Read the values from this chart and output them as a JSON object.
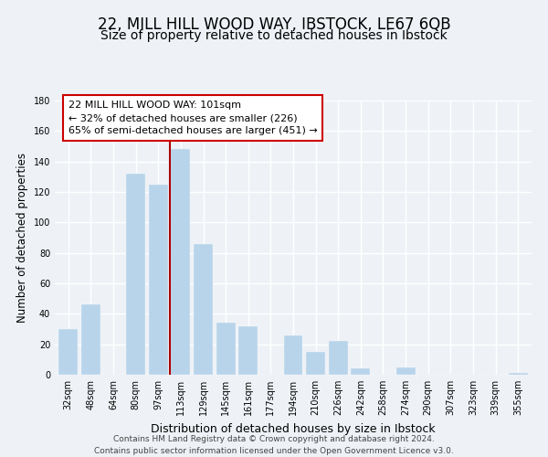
{
  "title": "22, MILL HILL WOOD WAY, IBSTOCK, LE67 6QB",
  "subtitle": "Size of property relative to detached houses in Ibstock",
  "xlabel": "Distribution of detached houses by size in Ibstock",
  "ylabel": "Number of detached properties",
  "categories": [
    "32sqm",
    "48sqm",
    "64sqm",
    "80sqm",
    "97sqm",
    "113sqm",
    "129sqm",
    "145sqm",
    "161sqm",
    "177sqm",
    "194sqm",
    "210sqm",
    "226sqm",
    "242sqm",
    "258sqm",
    "274sqm",
    "290sqm",
    "307sqm",
    "323sqm",
    "339sqm",
    "355sqm"
  ],
  "values": [
    30,
    46,
    0,
    132,
    125,
    148,
    86,
    34,
    32,
    0,
    26,
    15,
    22,
    4,
    0,
    5,
    0,
    0,
    0,
    0,
    1
  ],
  "bar_color": "#b8d4ea",
  "vline_index": 4.5,
  "vline_color": "#aa0000",
  "annotation_line1": "22 MILL HILL WOOD WAY: 101sqm",
  "annotation_line2": "← 32% of detached houses are smaller (226)",
  "annotation_line3": "65% of semi-detached houses are larger (451) →",
  "annotation_box_facecolor": "#ffffff",
  "annotation_box_edgecolor": "#cc0000",
  "ylim": [
    0,
    180
  ],
  "yticks": [
    0,
    20,
    40,
    60,
    80,
    100,
    120,
    140,
    160,
    180
  ],
  "background_color": "#eef2f7",
  "grid_color": "#ffffff",
  "title_fontsize": 12,
  "subtitle_fontsize": 10,
  "ylabel_fontsize": 8.5,
  "xlabel_fontsize": 9,
  "tick_fontsize": 7,
  "annotation_fontsize": 8,
  "footer_line1": "Contains HM Land Registry data © Crown copyright and database right 2024.",
  "footer_line2": "Contains public sector information licensed under the Open Government Licence v3.0.",
  "footer_fontsize": 6.5
}
